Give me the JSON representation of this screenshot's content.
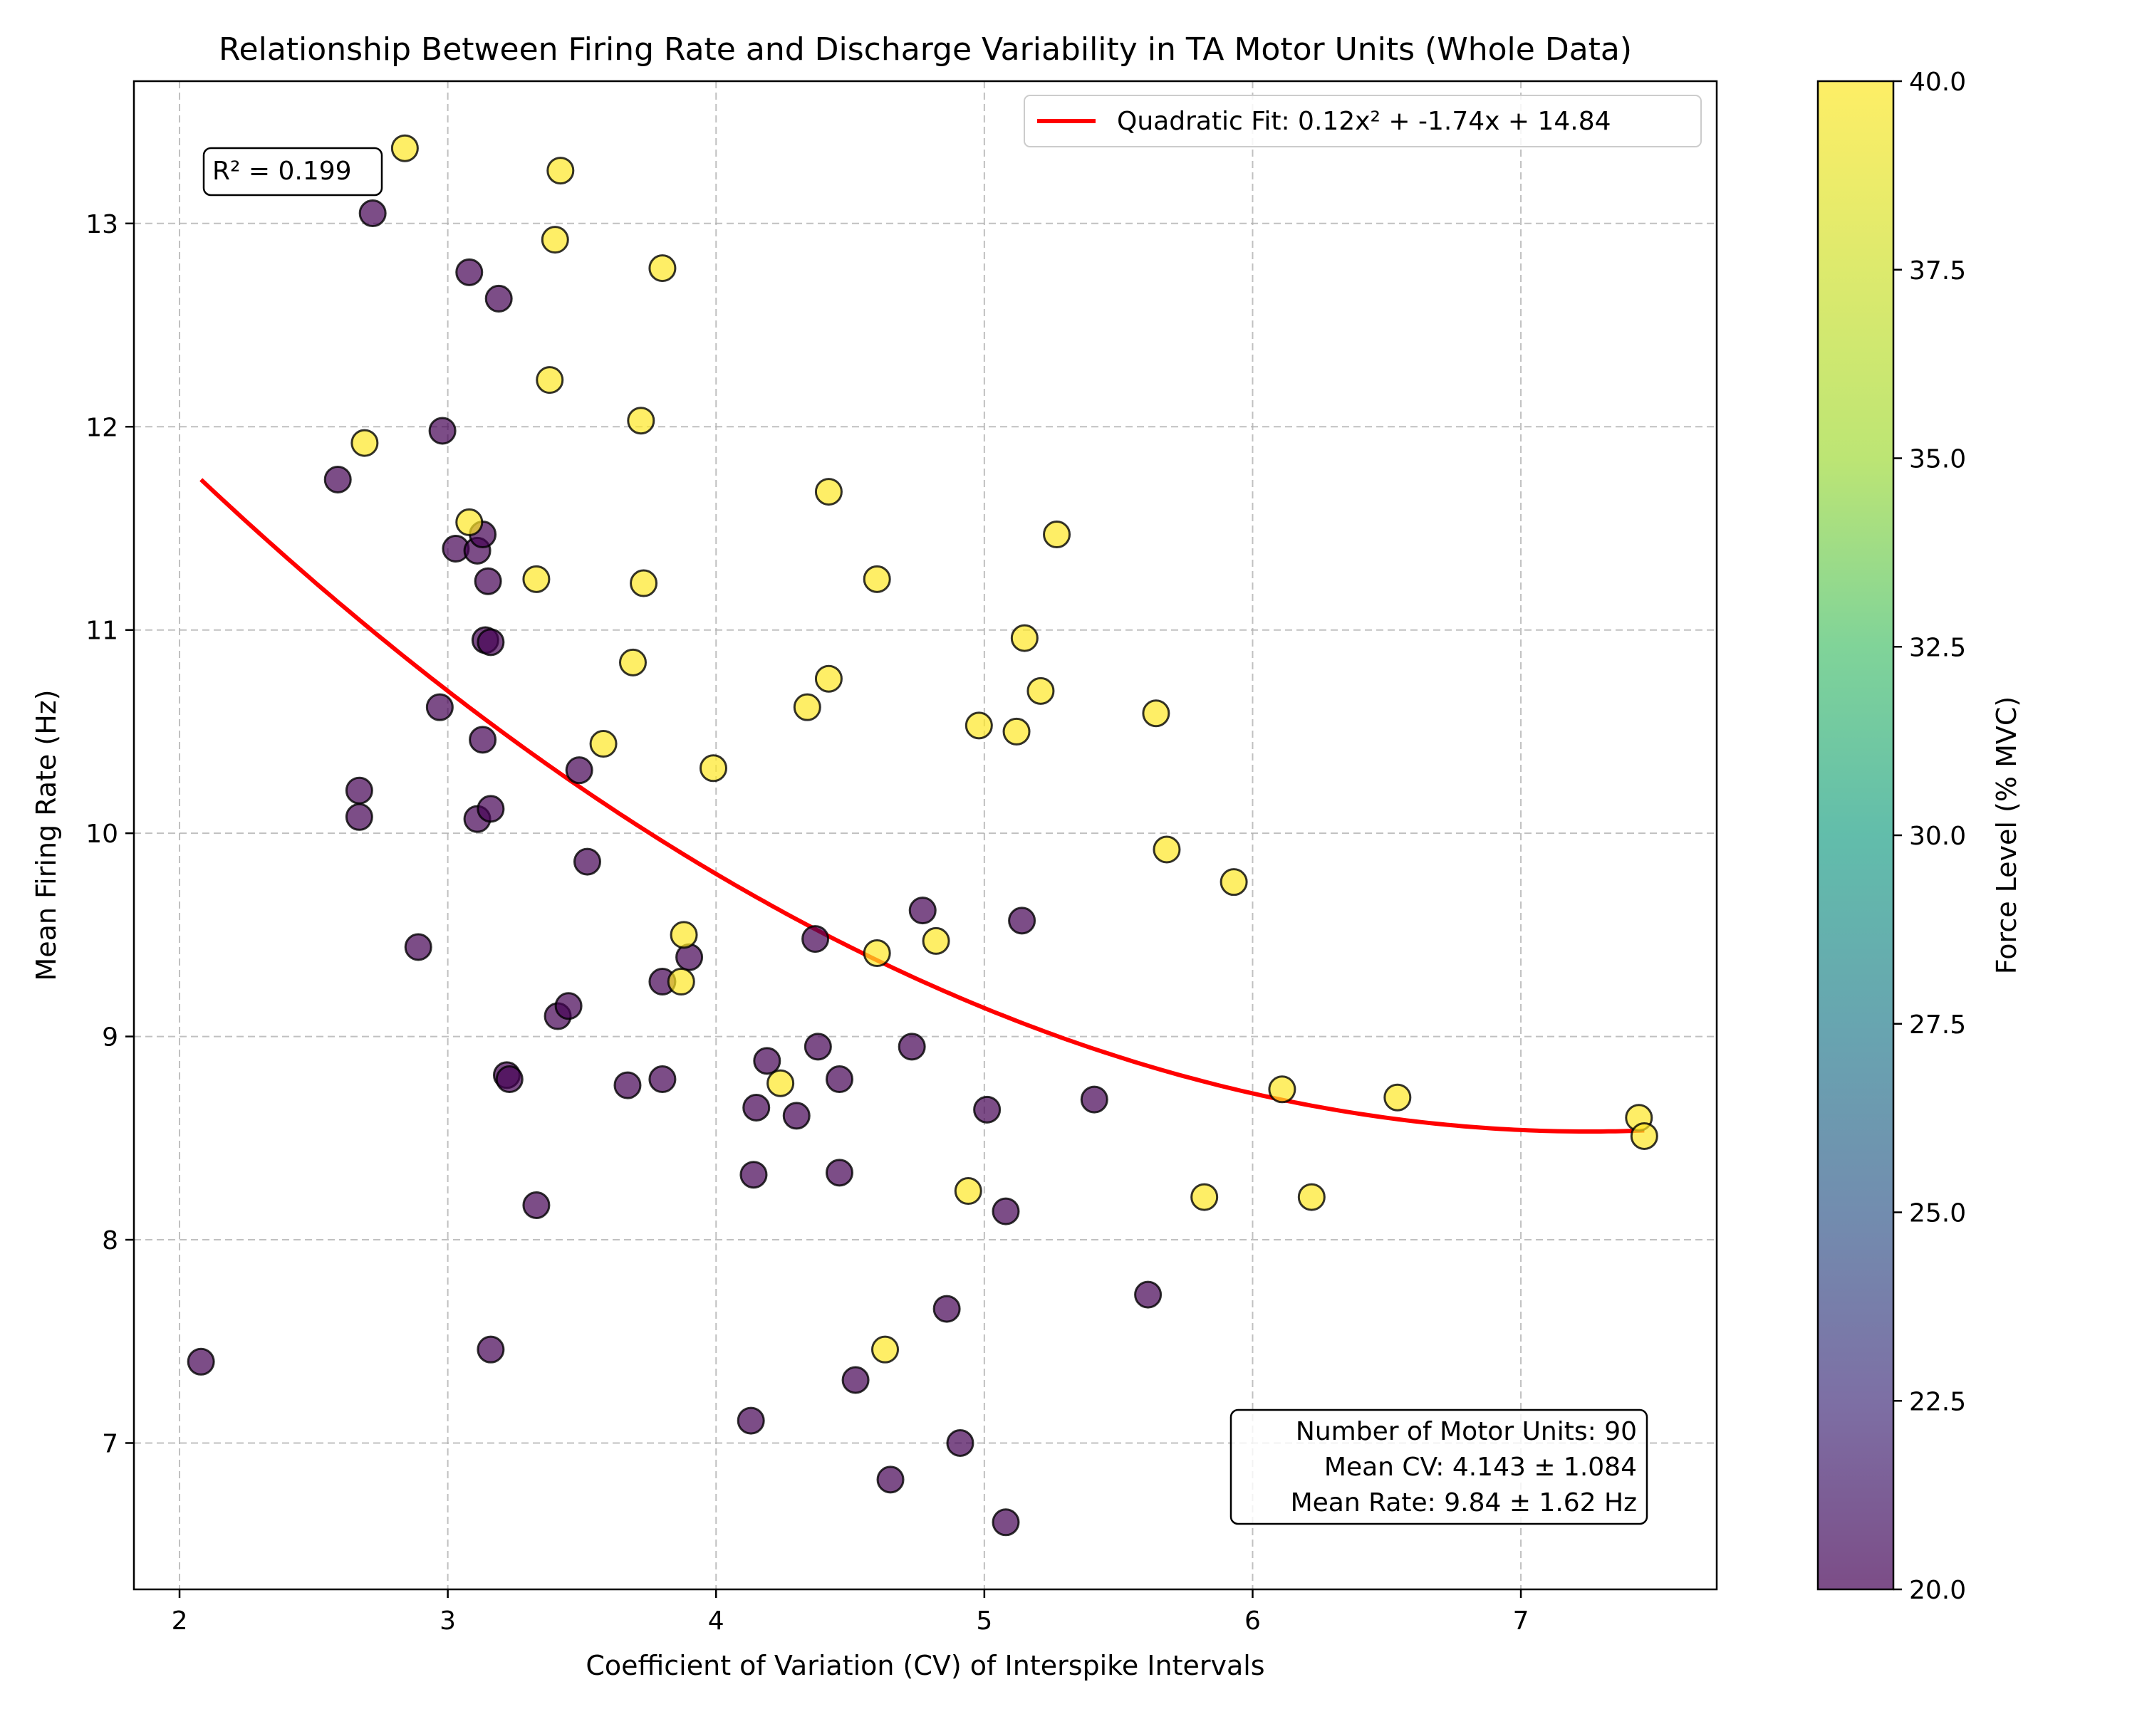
{
  "chart_data": {
    "type": "scatter",
    "title": "Relationship Between Firing Rate and Discharge Variability in TA Motor Units (Whole Data)",
    "xlabel": "Coefficient of Variation (CV) of Interspike Intervals",
    "ylabel": "Mean Firing Rate (Hz)",
    "xlim": [
      1.83,
      7.73
    ],
    "ylim": [
      6.28,
      13.7
    ],
    "xticks": [
      2,
      3,
      4,
      5,
      6,
      7
    ],
    "yticks": [
      7,
      8,
      9,
      10,
      11,
      12,
      13
    ],
    "grid": true,
    "legend": {
      "placement": "top-right",
      "label": "Quadratic Fit: 0.12x² + -1.74x + 14.84"
    },
    "r2_label": "R² = 0.199",
    "stats_lines": [
      "Number of Motor Units: 90",
      "Mean CV: 4.143 ± 1.084",
      "Mean Rate: 9.84 ± 1.62 Hz"
    ],
    "fit": {
      "a": 0.12,
      "b": -1.74,
      "c": 14.84,
      "x_range": [
        2.08,
        7.46
      ],
      "color": "#ff0000"
    },
    "colorbar": {
      "label": "Force Level (% MVC)",
      "range": [
        20.0,
        40.0
      ],
      "ticks": [
        "20.0",
        "22.5",
        "25.0",
        "27.5",
        "30.0",
        "32.5",
        "35.0",
        "37.5",
        "40.0"
      ],
      "colormap": "viridis"
    },
    "colors": {
      "low": "#440154",
      "high": "#fde725"
    },
    "series": [
      {
        "force": 20,
        "points": [
          [
            2.08,
            7.4
          ],
          [
            2.59,
            11.74
          ],
          [
            2.67,
            10.21
          ],
          [
            2.67,
            10.08
          ],
          [
            2.72,
            13.05
          ],
          [
            2.89,
            9.44
          ],
          [
            2.97,
            10.62
          ],
          [
            2.98,
            11.98
          ],
          [
            3.03,
            11.4
          ],
          [
            3.08,
            12.76
          ],
          [
            3.11,
            11.39
          ],
          [
            3.11,
            10.07
          ],
          [
            3.13,
            11.47
          ],
          [
            3.13,
            10.46
          ],
          [
            3.14,
            10.95
          ],
          [
            3.15,
            11.24
          ],
          [
            3.16,
            10.94
          ],
          [
            3.16,
            10.12
          ],
          [
            3.16,
            7.46
          ],
          [
            3.19,
            12.63
          ],
          [
            3.22,
            8.81
          ],
          [
            3.23,
            8.79
          ],
          [
            3.33,
            8.17
          ],
          [
            3.41,
            9.1
          ],
          [
            3.45,
            9.15
          ],
          [
            3.49,
            10.31
          ],
          [
            3.52,
            9.86
          ],
          [
            3.67,
            8.76
          ],
          [
            3.8,
            9.27
          ],
          [
            3.8,
            8.79
          ],
          [
            3.9,
            9.39
          ],
          [
            4.13,
            7.11
          ],
          [
            4.14,
            8.32
          ],
          [
            4.15,
            8.65
          ],
          [
            4.19,
            8.88
          ],
          [
            4.3,
            8.61
          ],
          [
            4.37,
            9.48
          ],
          [
            4.38,
            8.95
          ],
          [
            4.46,
            8.79
          ],
          [
            4.46,
            8.33
          ],
          [
            4.52,
            7.31
          ],
          [
            4.65,
            6.82
          ],
          [
            4.73,
            8.95
          ],
          [
            4.77,
            9.62
          ],
          [
            4.86,
            7.66
          ],
          [
            4.91,
            7.0
          ],
          [
            5.01,
            8.64
          ],
          [
            5.08,
            8.14
          ],
          [
            5.08,
            6.61
          ],
          [
            5.14,
            9.57
          ],
          [
            5.41,
            8.69
          ],
          [
            5.61,
            7.73
          ]
        ]
      },
      {
        "force": 40,
        "points": [
          [
            2.69,
            11.92
          ],
          [
            2.84,
            13.37
          ],
          [
            3.08,
            11.53
          ],
          [
            3.33,
            11.25
          ],
          [
            3.38,
            12.23
          ],
          [
            3.4,
            12.92
          ],
          [
            3.42,
            13.26
          ],
          [
            3.58,
            10.44
          ],
          [
            3.69,
            10.84
          ],
          [
            3.72,
            12.03
          ],
          [
            3.73,
            11.23
          ],
          [
            3.8,
            12.78
          ],
          [
            3.87,
            9.27
          ],
          [
            3.88,
            9.5
          ],
          [
            3.99,
            10.32
          ],
          [
            4.24,
            8.77
          ],
          [
            4.34,
            10.62
          ],
          [
            4.42,
            11.68
          ],
          [
            4.42,
            10.76
          ],
          [
            4.6,
            11.25
          ],
          [
            4.6,
            9.41
          ],
          [
            4.63,
            7.46
          ],
          [
            4.82,
            9.47
          ],
          [
            4.94,
            8.24
          ],
          [
            4.98,
            10.53
          ],
          [
            5.12,
            10.5
          ],
          [
            5.15,
            10.96
          ],
          [
            5.21,
            10.7
          ],
          [
            5.27,
            11.47
          ],
          [
            5.64,
            10.59
          ],
          [
            5.68,
            9.92
          ],
          [
            5.82,
            8.21
          ],
          [
            5.93,
            9.76
          ],
          [
            6.11,
            8.74
          ],
          [
            6.22,
            8.21
          ],
          [
            6.54,
            8.7
          ],
          [
            7.44,
            8.6
          ],
          [
            7.46,
            8.51
          ]
        ]
      }
    ]
  }
}
